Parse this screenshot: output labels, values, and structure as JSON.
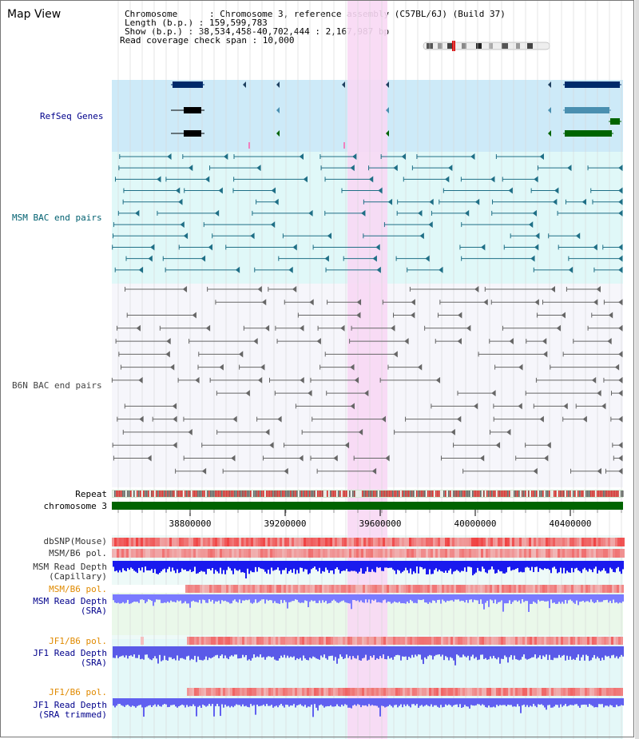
{
  "title": "Map View",
  "info": {
    "chromosome": "Chromosome      : Chromosome 3, reference assembly (C57BL/6J) (Build 37)",
    "length": "Length (b.p.) : 159,599,783",
    "show": "Show (b.p.) : 38,534,458-40,702,444 : 2,167,987 bp",
    "span": "Read coverage check span : 10,000"
  },
  "tracks": {
    "refseq": "RefSeq Genes",
    "msm_bac": "MSM BAC end pairs",
    "b6n_bac": "B6N BAC end pairs",
    "repeat": "Repeat",
    "chromosome": "chromosome 3",
    "dbsnp": "dbSNP(Mouse)",
    "msm_pol1": "MSM/B6 pol.",
    "msm_depth_cap_1": "MSM Read Depth",
    "msm_depth_cap_2": "(Capillary)",
    "msm_pol2": "MSM/B6 pol.",
    "msm_depth_sra_1": "MSM Read Depth",
    "msm_depth_sra_2": "(SRA)",
    "jf1_pol1": "JF1/B6 pol.",
    "jf1_depth_sra_1": "JF1 Read Depth",
    "jf1_depth_sra_2": "(SRA)",
    "jf1_pol2": "JF1/B6 pol.",
    "jf1_depth_trim_1": "JF1 Read Depth",
    "jf1_depth_trim_2": "(SRA trimmed)"
  },
  "axis_ticks": [
    "38800000",
    "39200000",
    "39600000",
    "40000000",
    "40400000"
  ],
  "colors": {
    "refseq_bg": "#cdeaf8",
    "msm_bg": "#e0f8f8",
    "b6n_bg": "#f6f6fb",
    "highlight": "#f8d8f4",
    "chrom_bar": "#006400",
    "label_blue": "#00008b",
    "label_teal": "#006070",
    "label_orange": "#e08a00"
  }
}
